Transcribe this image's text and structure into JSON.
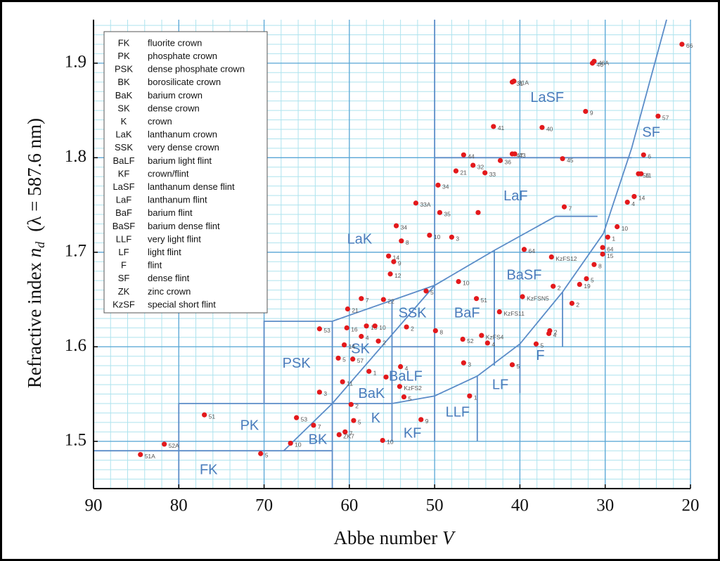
{
  "chart_data": {
    "type": "scatter",
    "x_label": {
      "text": "Abbe number",
      "symbol": "V"
    },
    "y_label": {
      "text": "Refractive index",
      "symbol": "n",
      "subscript": "d",
      "note": "(λ = 587.6 nm)"
    },
    "xlim": [
      90,
      20
    ],
    "xticks": [
      90,
      80,
      70,
      60,
      50,
      40,
      30,
      20
    ],
    "ylim": [
      1.45,
      1.946
    ],
    "yticks": [
      1.5,
      1.6,
      1.7,
      1.8,
      1.9
    ],
    "grid": true,
    "minor_grid": {
      "x": 2,
      "y": 0.01
    },
    "color": "#e3191c",
    "x": [
      21.0,
      31.5,
      31.3,
      40.9,
      40.7,
      32.3,
      43.1,
      37.4,
      23.8,
      46.6,
      40.9,
      40.6,
      42.3,
      35.0,
      25.5,
      47.5,
      45.5,
      44.1,
      26.1,
      25.8,
      49.6,
      26.6,
      27.4,
      52.2,
      49.4,
      44.9,
      34.8,
      28.6,
      54.5,
      50.6,
      48.0,
      53.9,
      29.7,
      30.3,
      30.3,
      39.5,
      36.3,
      55.4,
      54.8,
      31.3,
      55.2,
      47.2,
      32.2,
      33.0,
      36.1,
      51.0,
      39.7,
      58.6,
      56.0,
      45.1,
      33.9,
      60.2,
      42.4,
      63.5,
      60.3,
      58.0,
      57.0,
      53.3,
      49.9,
      36.5,
      36.6,
      58.6,
      44.5,
      56.6,
      46.7,
      43.8,
      38.1,
      60.6,
      61.3,
      59.6,
      54.0,
      46.6,
      40.9,
      57.7,
      60.8,
      55.7,
      54.1,
      63.5,
      53.6,
      45.9,
      59.8,
      77.0,
      66.2,
      59.5,
      51.6,
      64.2,
      60.5,
      61.2,
      66.9,
      56.1,
      81.7,
      70.4,
      84.5
    ],
    "y": [
      1.92,
      1.9,
      1.902,
      1.88,
      1.881,
      1.849,
      1.833,
      1.832,
      1.844,
      1.803,
      1.804,
      1.804,
      1.797,
      1.799,
      1.803,
      1.786,
      1.792,
      1.784,
      1.783,
      1.783,
      1.771,
      1.759,
      1.753,
      1.752,
      1.742,
      1.742,
      1.748,
      1.727,
      1.728,
      1.718,
      1.716,
      1.712,
      1.716,
      1.705,
      1.698,
      1.703,
      1.695,
      1.696,
      1.69,
      1.687,
      1.677,
      1.669,
      1.672,
      1.666,
      1.664,
      1.659,
      1.653,
      1.651,
      1.65,
      1.651,
      1.646,
      1.64,
      1.637,
      1.619,
      1.62,
      1.622,
      1.622,
      1.621,
      1.617,
      1.617,
      1.614,
      1.611,
      1.612,
      1.606,
      1.608,
      1.604,
      1.603,
      1.602,
      1.588,
      1.587,
      1.579,
      1.583,
      1.581,
      1.574,
      1.563,
      1.568,
      1.558,
      1.552,
      1.547,
      1.548,
      1.539,
      1.528,
      1.525,
      1.522,
      1.523,
      1.517,
      1.51,
      1.507,
      1.498,
      1.501,
      1.497,
      1.487,
      1.486
    ],
    "point_labels": [
      "66",
      "46",
      "46A",
      "31",
      "31A",
      "9",
      "41",
      "40",
      "57",
      "44",
      "47",
      "43",
      "36",
      "45",
      "6",
      "21",
      "32",
      "33",
      "56",
      "11",
      "34",
      "14",
      "4",
      "33A",
      "35",
      null,
      "7",
      "10",
      "34",
      "10",
      "3",
      "8",
      "1",
      "64",
      "15",
      "64",
      "KzFS12",
      "14",
      "9",
      "8",
      "12",
      "10",
      "5",
      "19",
      "2",
      "5",
      "KzFSN5",
      "7",
      "22",
      "51",
      "2",
      "21",
      "KzFS11",
      "53",
      "16",
      "15",
      "10",
      "2",
      "8",
      "2",
      "4",
      "4",
      "KzFS4",
      "2",
      "52",
      "4",
      "5",
      "14",
      "5",
      "57",
      "4",
      "3",
      "5",
      "1",
      "11",
      null,
      "KzFS2",
      "3",
      "5",
      "1",
      "2",
      "51",
      "53",
      "5",
      "9",
      "7",
      "7",
      "ZK7",
      "10",
      "10",
      "52A",
      "5",
      "51A"
    ],
    "legend": {
      "codes": [
        "FK",
        "PK",
        "PSK",
        "BK",
        "BaK",
        "SK",
        "K",
        "LaK",
        "SSK",
        "BaLF",
        "KF",
        "LaSF",
        "LaF",
        "BaF",
        "BaSF",
        "LLF",
        "LF",
        "F",
        "SF",
        "ZK",
        "KzSF"
      ],
      "names": [
        "fluorite crown",
        "phosphate crown",
        "dense phosphate crown",
        "borosilicate crown",
        "barium crown",
        "dense crown",
        "crown",
        "lanthanum crown",
        "very dense crown",
        "barium light flint",
        "crown/flint",
        "lanthanum dense flint",
        "lanthanum flint",
        "barium flint",
        "barium dense flint",
        "very light flint",
        "light flint",
        "flint",
        "dense flint",
        "zinc crown",
        "special short flint"
      ]
    },
    "regions": {
      "labels": [
        "LaSF",
        "SF",
        "LaF",
        "LaK",
        "BaSF",
        "SSK",
        "BaF",
        "SK",
        "PSK",
        "BaLF",
        "F",
        "LF",
        "BaK",
        "K",
        "PK",
        "KF",
        "LLF",
        "BK",
        "FK"
      ],
      "x": [
        36.8,
        24.6,
        40.5,
        58.8,
        39.5,
        52.6,
        46.2,
        58.7,
        66.2,
        53.4,
        37.6,
        42.3,
        57.4,
        56.9,
        71.7,
        52.6,
        47.3,
        63.7,
        76.5
      ],
      "y": [
        1.863,
        1.826,
        1.759,
        1.713,
        1.675,
        1.635,
        1.635,
        1.597,
        1.582,
        1.568,
        1.59,
        1.559,
        1.55,
        1.524,
        1.516,
        1.508,
        1.53,
        1.501,
        1.469
      ]
    },
    "boundaries": [
      {
        "x": [
          22.8,
          26.9,
          30.2,
          35.0,
          40.0,
          45.0,
          50.0,
          55.0
        ],
        "y": [
          1.946,
          1.81,
          1.72,
          1.658,
          1.603,
          1.569,
          1.548,
          1.54
        ]
      },
      {
        "x": [
          80,
          80,
          55
        ],
        "y": [
          1.45,
          1.54,
          1.54
        ]
      },
      {
        "x": [
          90,
          62
        ],
        "y": [
          1.49,
          1.49
        ]
      },
      {
        "x": [
          62,
          62
        ],
        "y": [
          1.45,
          1.627
        ]
      },
      {
        "x": [
          70,
          70,
          62,
          50,
          43,
          35.8,
          30.9
        ],
        "y": [
          1.54,
          1.627,
          1.627,
          1.665,
          1.702,
          1.738,
          1.738
        ]
      },
      {
        "x": [
          67.7,
          62,
          50
        ],
        "y": [
          1.49,
          1.54,
          1.665
        ]
      },
      {
        "x": [
          55,
          55
        ],
        "y": [
          1.5,
          1.65
        ]
      },
      {
        "x": [
          55,
          50
        ],
        "y": [
          1.6,
          1.6
        ]
      },
      {
        "x": [
          50,
          50
        ],
        "y": [
          1.946,
          1.5
        ]
      },
      {
        "x": [
          45,
          45
        ],
        "y": [
          1.5,
          1.569
        ]
      },
      {
        "x": [
          43,
          43
        ],
        "y": [
          1.58,
          1.702
        ]
      },
      {
        "x": [
          40,
          40
        ],
        "y": [
          1.551,
          1.603
        ]
      },
      {
        "x": [
          35,
          35
        ],
        "y": [
          1.6,
          1.658
        ]
      },
      {
        "x": [
          50,
          26.9
        ],
        "y": [
          1.8,
          1.8
        ]
      }
    ]
  }
}
